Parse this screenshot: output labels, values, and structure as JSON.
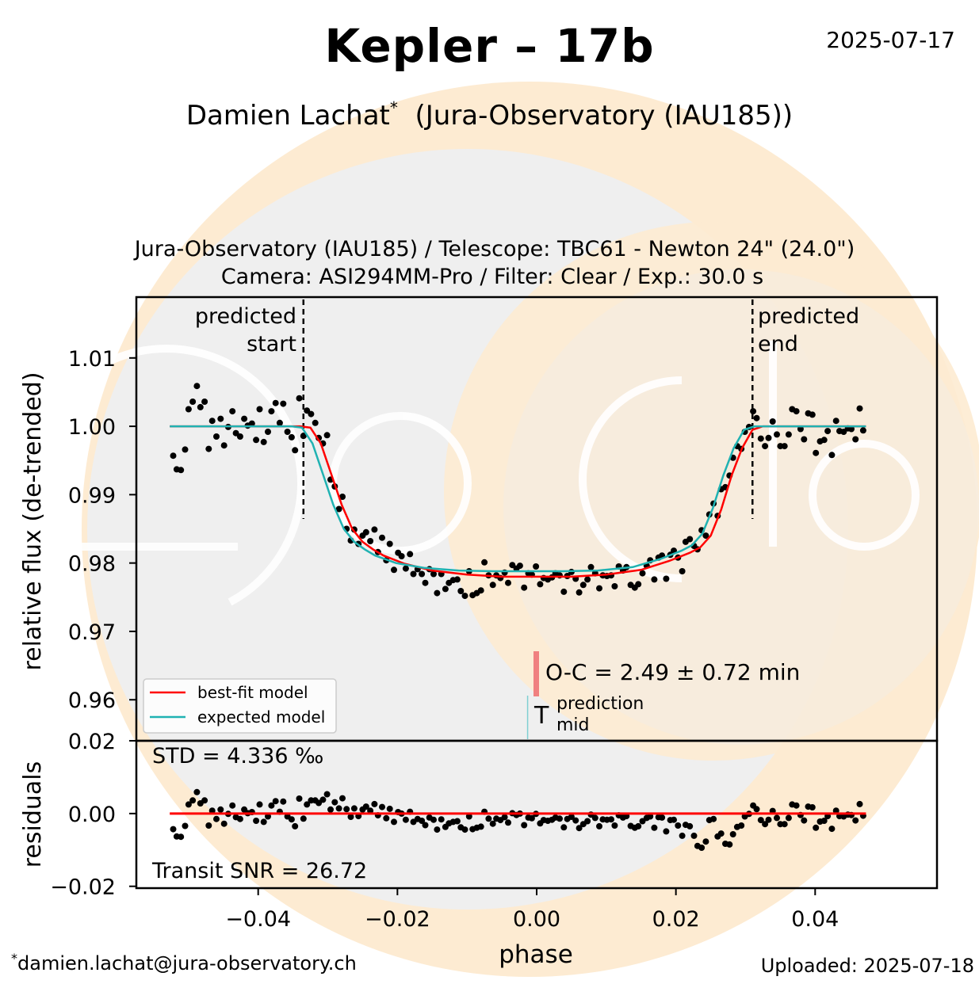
{
  "header": {
    "title": "Kepler – 17b",
    "date": "2025-07-17",
    "observer": "Damien Lachat",
    "observer_mark": "*",
    "observatory": "(Jura-Observatory (IAU185))",
    "setup_line1": "Jura-Observatory (IAU185) / Telescope: TBC61 - Newton 24\" (24.0\")",
    "setup_line2": "Camera: ASI294MM-Pro / Filter: Clear / Exp.: 30.0 s"
  },
  "footer": {
    "email_mark": "*",
    "email": "damien.lachat@jura-observatory.ch",
    "uploaded": "Uploaded: 2025-07-18"
  },
  "watermark": {
    "text": "ExoClock",
    "colors": {
      "sun": "#fdebd2",
      "panel": "#efefef"
    }
  },
  "colors": {
    "best_fit": "#ff0000",
    "expected": "#20b2b2",
    "oc_bar": "#f08080",
    "mid_line": "#7fcfd2",
    "points": "#000000"
  },
  "chart_data": {
    "type": "scatter",
    "xlabel": "phase",
    "xlim": [
      -0.0575,
      0.0575
    ],
    "xticks": [
      -0.04,
      -0.02,
      0.0,
      0.02,
      0.04
    ],
    "xtick_labels": [
      "−0.04",
      "−0.02",
      "0.00",
      "0.02",
      "0.04"
    ],
    "main": {
      "ylabel": "relative flux (de-trended)",
      "ylim": [
        0.954,
        1.0189
      ],
      "yticks": [
        0.96,
        0.97,
        0.98,
        0.99,
        1.0,
        1.01
      ],
      "ytick_labels": [
        "0.96",
        "0.97",
        "0.98",
        "0.99",
        "1.00",
        "1.01"
      ],
      "predicted_start": -0.0335,
      "predicted_end": 0.031,
      "predicted_start_label": [
        "predicted",
        "start"
      ],
      "predicted_end_label": [
        "predicted",
        "end"
      ],
      "oc_text": "O-C = 2.49 ± 0.72 min",
      "oc_phase": 0.0,
      "tmid_symbol": "T",
      "tmid_super": "prediction",
      "tmid_sub": "mid",
      "tmid_phase": -0.0013,
      "legend": {
        "position": "lower left",
        "entries": [
          "best-fit model",
          "expected model"
        ]
      },
      "series": [
        {
          "name": "best-fit model",
          "x": [
            -0.0527,
            -0.034,
            -0.0325,
            -0.031,
            -0.0295,
            -0.028,
            -0.0265,
            -0.025,
            -0.0235,
            -0.022,
            -0.019,
            -0.015,
            -0.01,
            -0.005,
            0.0,
            0.005,
            0.01,
            0.015,
            0.019,
            0.022,
            0.0235,
            0.025,
            0.0265,
            0.028,
            0.0295,
            0.031,
            0.0325,
            0.034,
            0.0473
          ],
          "y": [
            1.0,
            1.0,
            0.9998,
            0.9975,
            0.993,
            0.9885,
            0.985,
            0.9831,
            0.982,
            0.9811,
            0.9799,
            0.9789,
            0.9783,
            0.978,
            0.978,
            0.978,
            0.9783,
            0.979,
            0.9803,
            0.9815,
            0.9823,
            0.984,
            0.9878,
            0.9928,
            0.9968,
            0.9995,
            1.0,
            1.0,
            1.0
          ]
        },
        {
          "name": "expected model",
          "x": [
            -0.0527,
            -0.0352,
            -0.0337,
            -0.0322,
            -0.0307,
            -0.0292,
            -0.0277,
            -0.0262,
            -0.0247,
            -0.0232,
            -0.0202,
            -0.0162,
            -0.0112,
            -0.0062,
            -0.0012,
            0.0038,
            0.0088,
            0.0138,
            0.0178,
            0.0208,
            0.0223,
            0.0238,
            0.0253,
            0.0268,
            0.0283,
            0.0298,
            0.0313,
            0.0328,
            0.0473
          ],
          "y": [
            1.0,
            1.0,
            0.9998,
            0.9975,
            0.993,
            0.9885,
            0.985,
            0.9831,
            0.982,
            0.9811,
            0.98,
            0.9793,
            0.9789,
            0.9788,
            0.9788,
            0.9788,
            0.9789,
            0.9794,
            0.9806,
            0.9818,
            0.9826,
            0.9843,
            0.988,
            0.9928,
            0.9968,
            0.9995,
            1.0,
            1.0,
            1.0
          ]
        },
        {
          "name": "data",
          "x": [
            -0.0522,
            -0.0517,
            -0.0511,
            -0.0505,
            -0.05,
            -0.0494,
            -0.0488,
            -0.0483,
            -0.0477,
            -0.0471,
            -0.0466,
            -0.046,
            -0.0454,
            -0.0449,
            -0.0443,
            -0.0437,
            -0.0432,
            -0.0426,
            -0.042,
            -0.0415,
            -0.0409,
            -0.0403,
            -0.0398,
            -0.0392,
            -0.0386,
            -0.0381,
            -0.0375,
            -0.0369,
            -0.0364,
            -0.0358,
            -0.0352,
            -0.0347,
            -0.0341,
            -0.0335,
            -0.033,
            -0.0324,
            -0.0318,
            -0.0313,
            -0.0307,
            -0.0301,
            -0.0296,
            -0.029,
            -0.0284,
            -0.0279,
            -0.0273,
            -0.0267,
            -0.0262,
            -0.0256,
            -0.025,
            -0.0245,
            -0.0239,
            -0.0233,
            -0.0228,
            -0.0222,
            -0.0216,
            -0.0211,
            -0.0205,
            -0.0199,
            -0.0194,
            -0.0188,
            -0.0182,
            -0.0177,
            -0.0171,
            -0.0165,
            -0.016,
            -0.0154,
            -0.0148,
            -0.0143,
            -0.0137,
            -0.0131,
            -0.0126,
            -0.012,
            -0.0114,
            -0.0109,
            -0.0103,
            -0.0097,
            -0.0092,
            -0.0086,
            -0.008,
            -0.0075,
            -0.0069,
            -0.0063,
            -0.0058,
            -0.0052,
            -0.0046,
            -0.0041,
            -0.0035,
            -0.0029,
            -0.0024,
            -0.0018,
            -0.0012,
            -0.0007,
            -0.0001,
            0.0005,
            0.001,
            0.0016,
            0.0022,
            0.0027,
            0.0033,
            0.0039,
            0.0044,
            0.005,
            0.0056,
            0.0061,
            0.0067,
            0.0073,
            0.0078,
            0.0084,
            0.009,
            0.0095,
            0.0101,
            0.0107,
            0.0112,
            0.0118,
            0.0124,
            0.0129,
            0.0135,
            0.0141,
            0.0146,
            0.0152,
            0.0158,
            0.0163,
            0.0169,
            0.0175,
            0.018,
            0.0186,
            0.0192,
            0.0197,
            0.0203,
            0.0209,
            0.0214,
            0.022,
            0.0226,
            0.0231,
            0.0237,
            0.0243,
            0.0248,
            0.0254,
            0.026,
            0.0265,
            0.0271,
            0.0277,
            0.0282,
            0.0288,
            0.0294,
            0.0299,
            0.0305,
            0.0311,
            0.0316,
            0.0322,
            0.0328,
            0.0333,
            0.0339,
            0.0345,
            0.035,
            0.0356,
            0.0362,
            0.0367,
            0.0373,
            0.0379,
            0.0384,
            0.039,
            0.0396,
            0.0401,
            0.0407,
            0.0413,
            0.0418,
            0.0424,
            0.043,
            0.0435,
            0.0441,
            0.0447,
            0.0452,
            0.0458,
            0.0464,
            0.0469
          ],
          "y": [
            0.9957,
            0.9937,
            0.9936,
            0.9966,
            1.0025,
            1.0036,
            1.0059,
            1.0028,
            1.0036,
            0.9967,
            1.0008,
            0.9985,
            1.0011,
            0.9972,
            0.9999,
            1.0022,
            0.999,
            0.9985,
            1.0011,
            1.0001,
            1.0004,
            0.998,
            1.0025,
            0.9977,
            0.9992,
            1.0022,
            1.0034,
            1.0005,
            1.0033,
            0.9992,
            0.9984,
            0.9965,
            1.0041,
            0.9986,
            1.0023,
            1.0018,
            1.0005,
            0.9983,
            0.9975,
            0.9987,
            0.9922,
            0.9912,
            0.9879,
            0.9897,
            0.985,
            0.9833,
            0.9849,
            0.9828,
            0.984,
            0.9845,
            0.9832,
            0.9849,
            0.9816,
            0.9837,
            0.9804,
            0.9828,
            0.979,
            0.9815,
            0.981,
            0.9792,
            0.9813,
            0.9784,
            0.9791,
            0.9784,
            0.9771,
            0.9791,
            0.9784,
            0.9756,
            0.9784,
            0.9762,
            0.9771,
            0.9775,
            0.9776,
            0.9759,
            0.9752,
            0.9788,
            0.9753,
            0.9756,
            0.976,
            0.9801,
            0.9782,
            0.9768,
            0.9782,
            0.9778,
            0.9786,
            0.9771,
            0.9797,
            0.9792,
            0.9796,
            0.9764,
            0.9785,
            0.9783,
            0.9795,
            0.9769,
            0.9778,
            0.9776,
            0.9779,
            0.9785,
            0.9782,
            0.9758,
            0.9781,
            0.9787,
            0.9777,
            0.9757,
            0.9768,
            0.9776,
            0.9794,
            0.9785,
            0.9763,
            0.9782,
            0.9781,
            0.9782,
            0.9766,
            0.9795,
            0.9789,
            0.9794,
            0.9768,
            0.9764,
            0.9769,
            0.9785,
            0.9796,
            0.9804,
            0.9776,
            0.9808,
            0.9811,
            0.9777,
            0.9812,
            0.9818,
            0.9808,
            0.9788,
            0.9831,
            0.9835,
            0.9825,
            0.982,
            0.9848,
            0.984,
            0.9871,
            0.9887,
            0.9869,
            0.9908,
            0.9911,
            0.9928,
            0.9954,
            0.9971,
            0.9967,
            0.9992,
            0.9999,
            1.0022,
            1.0012,
            0.9982,
            0.9971,
            0.9983,
            1.0007,
            0.9988,
            0.9971,
            0.9971,
            0.9988,
            1.0025,
            1.0022,
            0.9996,
            0.9981,
            1.0019,
            1.0017,
            0.9961,
            0.9978,
            0.998,
            0.9993,
            0.9958,
            1.0008,
            0.9993,
            0.9992,
            0.9997,
            0.9996,
            0.9981,
            1.0026,
            0.9994
          ]
        }
      ]
    },
    "residuals": {
      "ylabel": "residuals",
      "ylim": [
        -0.0205,
        0.02
      ],
      "yticks": [
        -0.02,
        0.0,
        0.02
      ],
      "ytick_labels": [
        "−0.02",
        "0.00",
        "0.02"
      ],
      "std_text": "STD = 4.336 ‰",
      "snr_text": "Transit SNR = 26.72",
      "zero_line": 0.0,
      "series": [
        {
          "name": "residuals",
          "x": [
            -0.0522,
            -0.0517,
            -0.0511,
            -0.0505,
            -0.05,
            -0.0494,
            -0.0488,
            -0.0483,
            -0.0477,
            -0.0471,
            -0.0466,
            -0.046,
            -0.0454,
            -0.0449,
            -0.0443,
            -0.0437,
            -0.0432,
            -0.0426,
            -0.042,
            -0.0415,
            -0.0409,
            -0.0403,
            -0.0398,
            -0.0392,
            -0.0386,
            -0.0381,
            -0.0375,
            -0.0369,
            -0.0364,
            -0.0358,
            -0.0352,
            -0.0347,
            -0.0341,
            -0.0335,
            -0.033,
            -0.0324,
            -0.0318,
            -0.0313,
            -0.0307,
            -0.0301,
            -0.0296,
            -0.029,
            -0.0284,
            -0.0279,
            -0.0273,
            -0.0267,
            -0.0262,
            -0.0256,
            -0.025,
            -0.0245,
            -0.0239,
            -0.0233,
            -0.0228,
            -0.0222,
            -0.0216,
            -0.0211,
            -0.0205,
            -0.0199,
            -0.0194,
            -0.0188,
            -0.0182,
            -0.0177,
            -0.0171,
            -0.0165,
            -0.016,
            -0.0154,
            -0.0148,
            -0.0143,
            -0.0137,
            -0.0131,
            -0.0126,
            -0.012,
            -0.0114,
            -0.0109,
            -0.0103,
            -0.0097,
            -0.0092,
            -0.0086,
            -0.008,
            -0.0075,
            -0.0069,
            -0.0063,
            -0.0058,
            -0.0052,
            -0.0046,
            -0.0041,
            -0.0035,
            -0.0029,
            -0.0024,
            -0.0018,
            -0.0012,
            -0.0007,
            -0.0001,
            0.0005,
            0.001,
            0.0016,
            0.0022,
            0.0027,
            0.0033,
            0.0039,
            0.0044,
            0.005,
            0.0056,
            0.0061,
            0.0067,
            0.0073,
            0.0078,
            0.0084,
            0.009,
            0.0095,
            0.0101,
            0.0107,
            0.0112,
            0.0118,
            0.0124,
            0.0129,
            0.0135,
            0.0141,
            0.0146,
            0.0152,
            0.0158,
            0.0163,
            0.0169,
            0.0175,
            0.018,
            0.0186,
            0.0192,
            0.0197,
            0.0203,
            0.0209,
            0.0214,
            0.022,
            0.0226,
            0.0231,
            0.0237,
            0.0243,
            0.0248,
            0.0254,
            0.026,
            0.0265,
            0.0271,
            0.0277,
            0.0282,
            0.0288,
            0.0294,
            0.0299,
            0.0305,
            0.0311,
            0.0316,
            0.0322,
            0.0328,
            0.0333,
            0.0339,
            0.0345,
            0.035,
            0.0356,
            0.0362,
            0.0367,
            0.0373,
            0.0379,
            0.0384,
            0.039,
            0.0396,
            0.0401,
            0.0407,
            0.0413,
            0.0418,
            0.0424,
            0.043,
            0.0435,
            0.0441,
            0.0447,
            0.0452,
            0.0458,
            0.0464,
            0.0469
          ],
          "y": [
            -0.0043,
            -0.0063,
            -0.0064,
            -0.0034,
            0.0025,
            0.0036,
            0.0059,
            0.0028,
            0.0036,
            -0.0033,
            0.0008,
            -0.0015,
            0.0011,
            -0.0028,
            -0.0001,
            0.0022,
            -0.001,
            -0.0015,
            0.0011,
            0.0001,
            0.0004,
            -0.002,
            0.0025,
            -0.0023,
            -0.0008,
            0.0022,
            0.0034,
            0.0005,
            0.0033,
            -0.0008,
            -0.0016,
            -0.0035,
            0.0041,
            -0.0014,
            0.0025,
            0.0036,
            0.0036,
            0.0029,
            0.0038,
            0.0053,
            0.0011,
            0.0031,
            0.0014,
            0.0042,
            0.0012,
            -0.0009,
            0.0014,
            -0.0007,
            0.0011,
            0.0019,
            0.0008,
            0.0026,
            -0.0005,
            0.0018,
            -0.0013,
            0.0013,
            -0.0023,
            0.0004,
            -0.0,
            -0.0017,
            0.0005,
            -0.0023,
            -0.0015,
            -0.002,
            -0.0032,
            -0.0011,
            -0.0017,
            -0.0044,
            -0.0016,
            -0.0037,
            -0.0027,
            -0.0023,
            -0.0021,
            -0.0038,
            -0.0044,
            -0.0008,
            -0.0043,
            -0.0039,
            -0.0036,
            0.0005,
            -0.0014,
            -0.0028,
            -0.0014,
            -0.0018,
            -0.001,
            -0.0025,
            0.0001,
            -0.0004,
            0.0,
            -0.0032,
            -0.0011,
            -0.0013,
            -0.0001,
            -0.0027,
            -0.0018,
            -0.002,
            -0.0017,
            -0.0011,
            -0.0014,
            -0.0038,
            -0.0015,
            -0.0009,
            -0.0019,
            -0.004,
            -0.0029,
            -0.0021,
            -0.0003,
            -0.0012,
            -0.0035,
            -0.0016,
            -0.0017,
            -0.0016,
            -0.0033,
            -0.0005,
            -0.0011,
            -0.0007,
            -0.0034,
            -0.0039,
            -0.0035,
            -0.0021,
            -0.0012,
            -0.0008,
            -0.0039,
            -0.001,
            -0.0011,
            -0.0049,
            -0.0018,
            -0.0017,
            -0.0033,
            -0.0061,
            -0.0031,
            -0.0035,
            -0.0061,
            -0.0089,
            -0.0094,
            -0.0077,
            -0.0018,
            -0.0015,
            -0.0063,
            -0.0055,
            -0.0083,
            -0.0085,
            -0.0057,
            -0.0037,
            -0.0033,
            -0.0008,
            -0.0001,
            0.0022,
            0.0012,
            -0.0018,
            -0.0029,
            -0.0017,
            0.0007,
            -0.0012,
            -0.0029,
            -0.0029,
            -0.0012,
            0.0025,
            0.0022,
            -0.0004,
            -0.0019,
            0.0019,
            0.0017,
            -0.0039,
            -0.0022,
            -0.002,
            -0.0007,
            -0.0042,
            0.0008,
            -0.0007,
            -0.0008,
            -0.0003,
            -0.0004,
            -0.0019,
            0.0026,
            -0.0006
          ]
        }
      ]
    }
  }
}
